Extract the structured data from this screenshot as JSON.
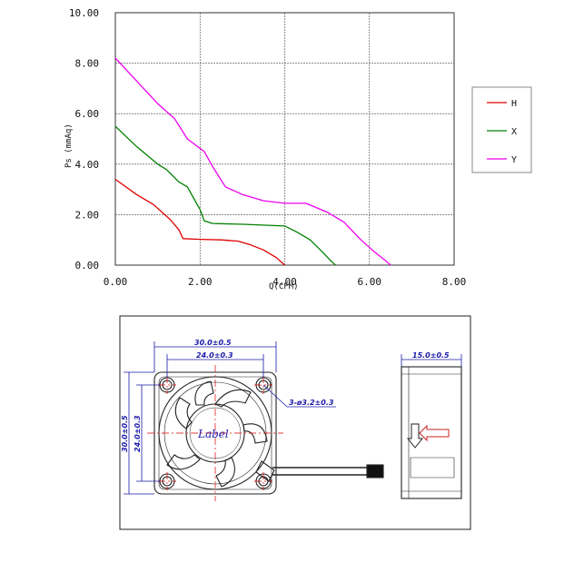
{
  "chart_data": {
    "type": "line",
    "xlabel": "Q(CFM)",
    "ylabel": "Ps (mmAq)",
    "xlim": [
      0,
      8
    ],
    "ylim": [
      0,
      10
    ],
    "x_ticks": [
      "0.00",
      "2.00",
      "4.00",
      "6.00",
      "8.00"
    ],
    "y_ticks": [
      "0.00",
      "2.00",
      "4.00",
      "6.00",
      "8.00",
      "10.00"
    ],
    "grid": true,
    "legend_position": "right",
    "series": [
      {
        "name": "H",
        "color": "#e00000",
        "x": [
          0,
          0.5,
          0.9,
          1.1,
          1.3,
          1.5,
          1.6,
          2.0,
          2.5,
          2.9,
          3.2,
          3.5,
          3.8,
          4.0
        ],
        "y": [
          3.4,
          2.8,
          2.4,
          2.1,
          1.8,
          1.4,
          1.05,
          1.02,
          1.0,
          0.95,
          0.8,
          0.6,
          0.3,
          0.0
        ]
      },
      {
        "name": "X",
        "color": "#008000",
        "x": [
          0,
          0.5,
          1.0,
          1.2,
          1.5,
          1.7,
          1.9,
          2.0,
          2.1,
          2.3,
          3.0,
          4.0,
          4.3,
          4.6,
          4.9,
          5.1,
          5.2
        ],
        "y": [
          5.5,
          4.7,
          4.0,
          3.8,
          3.3,
          3.1,
          2.5,
          2.2,
          1.75,
          1.65,
          1.62,
          1.55,
          1.3,
          1.0,
          0.5,
          0.15,
          0.0
        ]
      },
      {
        "name": "Y",
        "color": "#ee00ee",
        "x": [
          0,
          0.5,
          1.0,
          1.4,
          1.7,
          2.1,
          2.3,
          2.6,
          3.0,
          3.5,
          4.0,
          4.5,
          5.0,
          5.4,
          5.8,
          6.1,
          6.4,
          6.5
        ],
        "y": [
          8.2,
          7.3,
          6.4,
          5.8,
          5.0,
          4.5,
          3.9,
          3.1,
          2.8,
          2.55,
          2.45,
          2.45,
          2.1,
          1.7,
          1.0,
          0.55,
          0.15,
          0.0
        ]
      }
    ]
  },
  "drawing": {
    "dims": {
      "outer_width": "30.0±0.5",
      "hole_pitch": "24.0±0.3",
      "holes": "3-ø3.2±0.3",
      "outer_height": "30.0±0.5",
      "hole_pitch_v": "24.0±0.3",
      "depth": "15.0±0.5"
    },
    "label": "Label"
  }
}
